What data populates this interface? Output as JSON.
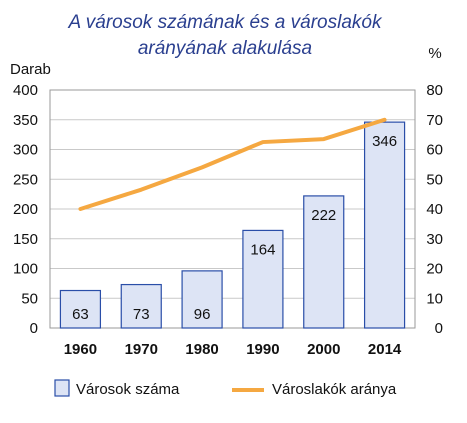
{
  "chart_data": {
    "type": "bar",
    "title": [
      "A városok számának és a városlakók",
      "arányának alakulása"
    ],
    "ylabel_left": "Darab",
    "ylabel_right": "%",
    "categories": [
      "1960",
      "1970",
      "1980",
      "1990",
      "2000",
      "2014"
    ],
    "ylim_left": [
      0,
      400
    ],
    "yticks_left": [
      "0",
      "50",
      "100",
      "150",
      "200",
      "250",
      "300",
      "350",
      "400"
    ],
    "ylim_right": [
      0,
      80
    ],
    "yticks_right": [
      "0",
      "10",
      "20",
      "30",
      "40",
      "50",
      "60",
      "70",
      "80"
    ],
    "series": [
      {
        "name": "Városok száma",
        "type": "bar",
        "axis": "left",
        "values": [
          63,
          73,
          96,
          164,
          222,
          346
        ],
        "color": "#dde4f5",
        "stroke": "#2a4ea8"
      },
      {
        "name": "Városlakók aránya",
        "type": "line",
        "axis": "right",
        "values": [
          40,
          46.5,
          54,
          62.5,
          63.5,
          70
        ],
        "color": "#f5a841"
      }
    ],
    "bar_labels_shown": [
      "63",
      "73",
      "96",
      "164",
      "222",
      "346"
    ],
    "grid": "horizontal",
    "legend": "bottom"
  }
}
